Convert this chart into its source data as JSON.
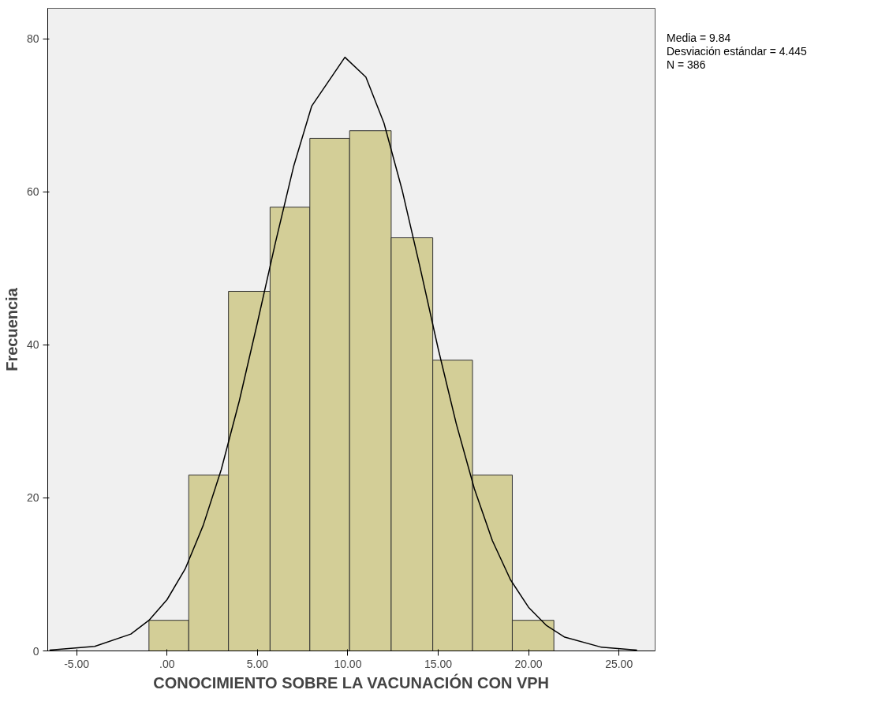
{
  "chart_data": {
    "type": "histogram",
    "xlabel": "CONOCIMIENTO SOBRE LA VACUNACIÓN CON VPH",
    "ylabel": "Frecuencia",
    "bins": [
      -1.0,
      1.2,
      3.4,
      5.7,
      7.9,
      10.1,
      12.4,
      14.7,
      16.9,
      19.1,
      21.4
    ],
    "values": [
      4,
      23,
      47,
      58,
      67,
      68,
      54,
      38,
      23,
      4
    ],
    "color": "#d3ce97",
    "series": [
      {
        "type": "line",
        "color": "#000000",
        "x": [
          -6.5,
          -4,
          -2,
          -1,
          0,
          1,
          2,
          3,
          4,
          5,
          6,
          7,
          8,
          9.84,
          11,
          12,
          13,
          14,
          15,
          16,
          17,
          18,
          19,
          20,
          21,
          22,
          24,
          26
        ],
        "values": [
          0.1,
          0.6,
          2.2,
          4.0,
          6.7,
          10.7,
          16.4,
          23.7,
          32.7,
          42.9,
          53.4,
          63.3,
          71.2,
          77.6,
          75.0,
          69.0,
          60.3,
          50.1,
          39.5,
          29.7,
          21.2,
          14.4,
          9.3,
          5.7,
          3.3,
          1.8,
          0.5,
          0.1
        ]
      }
    ],
    "xlim": [
      -6.6,
      27.0
    ],
    "ylim": [
      0,
      84
    ],
    "xticks": [
      {
        "value": -5,
        "label": "-5.00"
      },
      {
        "value": 0,
        "label": ".00"
      },
      {
        "value": 5,
        "label": "5.00"
      },
      {
        "value": 10,
        "label": "10.00"
      },
      {
        "value": 15,
        "label": "15.00"
      },
      {
        "value": 20,
        "label": "20.00"
      },
      {
        "value": 25,
        "label": "25.00"
      }
    ],
    "yticks": [
      0,
      20,
      40,
      60,
      80
    ],
    "grid": false,
    "annotations": [
      "Media = 9.84",
      "Desviación estándar = 4.445",
      "N = 386"
    ]
  }
}
